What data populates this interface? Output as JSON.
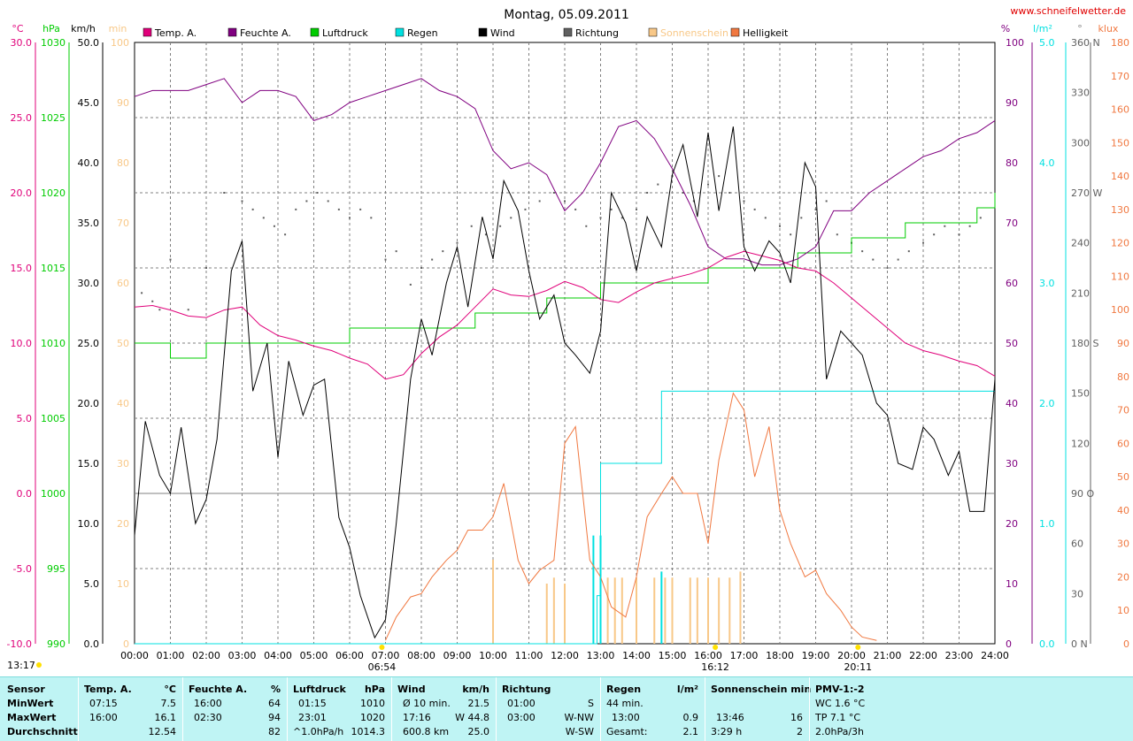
{
  "title": "Montag, 05.09.2011",
  "website": "www.schneifelwetter.de",
  "colors": {
    "temp": "#e0007a",
    "humidity": "#800080",
    "pressure": "#00cc00",
    "rain": "#00e0e0",
    "wind": "#000000",
    "direction": "#606060",
    "sunshine": "#f8c888",
    "brightness": "#f07840"
  },
  "legend": [
    {
      "label": "Temp. A.",
      "color": "#e0007a"
    },
    {
      "label": "Feuchte A.",
      "color": "#800080"
    },
    {
      "label": "Luftdruck",
      "color": "#00cc00"
    },
    {
      "label": "Regen",
      "color": "#00e0e0"
    },
    {
      "label": "Wind",
      "color": "#000000"
    },
    {
      "label": "Richtung",
      "color": "#606060"
    },
    {
      "label": "Sonnenschein",
      "color": "#f8c888"
    },
    {
      "label": "Helligkeit",
      "color": "#f07840"
    }
  ],
  "axes": {
    "left_units": [
      "°C",
      "hPa",
      "km/h",
      "min"
    ],
    "right_units": [
      "%",
      "l/m²",
      "°",
      "klux"
    ],
    "temp_ticks": [
      "30.0",
      "25.0",
      "20.0",
      "15.0",
      "10.0",
      "5.0",
      "0.0",
      "-5.0",
      "-10.0"
    ],
    "pressure_ticks": [
      "1030",
      "1025",
      "1020",
      "1015",
      "1010",
      "1005",
      "1000",
      "995",
      "990"
    ],
    "wind_ticks": [
      "50.0",
      "45.0",
      "40.0",
      "35.0",
      "30.0",
      "25.0",
      "20.0",
      "15.0",
      "10.0",
      "5.0",
      "0.0"
    ],
    "min_ticks": [
      "100",
      "90",
      "80",
      "70",
      "60",
      "50",
      "40",
      "30",
      "20",
      "10",
      "0"
    ],
    "humidity_ticks": [
      "100",
      "90",
      "80",
      "70",
      "60",
      "50",
      "40",
      "30",
      "20",
      "10",
      "0"
    ],
    "rain_ticks": [
      "5.0",
      "4.0",
      "3.0",
      "2.0",
      "1.0",
      "0.0"
    ],
    "dir_ticks": [
      "360 N",
      "330",
      "300",
      "270 W",
      "240",
      "210",
      "180 S",
      "150",
      "120",
      "90 O",
      "60",
      "30",
      "0 N"
    ],
    "klux_ticks": [
      "180",
      "170",
      "160",
      "150",
      "140",
      "130",
      "120",
      "110",
      "100",
      "90",
      "80",
      "70",
      "60",
      "50",
      "40",
      "30",
      "20",
      "10",
      "0"
    ],
    "x_ticks": [
      "00:00",
      "01:00",
      "02:00",
      "03:00",
      "04:00",
      "05:00",
      "06:00",
      "07:00",
      "08:00",
      "09:00",
      "10:00",
      "11:00",
      "12:00",
      "13:00",
      "14:00",
      "15:00",
      "16:00",
      "17:00",
      "18:00",
      "19:00",
      "20:00",
      "21:00",
      "22:00",
      "23:00",
      "24:00"
    ],
    "sun_markers": [
      {
        "label": "13:17"
      },
      {
        "label": "06:54"
      },
      {
        "label": "16:12"
      },
      {
        "label": "20:11"
      }
    ]
  },
  "chart_data": {
    "type": "line",
    "x_unit": "hour",
    "series": [
      {
        "name": "Temp. A.",
        "unit": "°C",
        "x": [
          0,
          0.5,
          1,
          1.5,
          2,
          2.5,
          3,
          3.5,
          4,
          4.5,
          5,
          5.5,
          6,
          6.5,
          7,
          7.5,
          8,
          8.5,
          9,
          9.5,
          10,
          10.5,
          11,
          11.5,
          12,
          12.5,
          13,
          13.5,
          14,
          14.5,
          15,
          15.5,
          16,
          16.5,
          17,
          17.5,
          18,
          18.5,
          19,
          19.5,
          20,
          20.5,
          21,
          21.5,
          22,
          22.5,
          23,
          23.5,
          24
        ],
        "y": [
          12.4,
          12.5,
          12.2,
          11.8,
          11.7,
          12.2,
          12.4,
          11.2,
          10.5,
          10.2,
          9.8,
          9.5,
          9.0,
          8.6,
          7.6,
          7.9,
          9.3,
          10.4,
          11.2,
          12.4,
          13.6,
          13.2,
          13.1,
          13.5,
          14.1,
          13.7,
          12.9,
          12.7,
          13.4,
          14.0,
          14.3,
          14.6,
          15.0,
          15.7,
          16.1,
          15.8,
          15.5,
          15.0,
          14.8,
          14.0,
          13.0,
          12.0,
          11.0,
          10.0,
          9.5,
          9.2,
          8.8,
          8.5,
          7.8
        ]
      },
      {
        "name": "Feuchte A.",
        "unit": "%",
        "x": [
          0,
          0.5,
          1,
          1.5,
          2,
          2.5,
          3,
          3.5,
          4,
          4.5,
          5,
          5.5,
          6,
          6.5,
          7,
          7.5,
          8,
          8.5,
          9,
          9.5,
          10,
          10.5,
          11,
          11.5,
          12,
          12.5,
          13,
          13.5,
          14,
          14.5,
          15,
          15.5,
          16,
          16.5,
          17,
          17.5,
          18,
          18.5,
          19,
          19.5,
          20,
          20.5,
          21,
          21.5,
          22,
          22.5,
          23,
          23.5,
          24
        ],
        "y": [
          91,
          92,
          92,
          92,
          93,
          94,
          90,
          92,
          92,
          91,
          87,
          88,
          90,
          91,
          92,
          93,
          94,
          92,
          91,
          89,
          82,
          79,
          80,
          78,
          72,
          75,
          80,
          86,
          87,
          84,
          79,
          73,
          66,
          64,
          64,
          63,
          63,
          64,
          66,
          72,
          72,
          75,
          77,
          79,
          81,
          82,
          84,
          85,
          87
        ]
      },
      {
        "name": "Luftdruck",
        "unit": "hPa",
        "x": [
          0,
          0.5,
          1,
          1.5,
          2,
          2.5,
          3,
          3.5,
          4,
          4.5,
          5,
          5.5,
          6,
          6.5,
          7,
          7.5,
          8,
          8.5,
          9,
          9.5,
          10,
          10.5,
          11,
          11.5,
          12,
          12.5,
          13,
          13.5,
          14,
          14.5,
          15,
          15.5,
          16,
          16.5,
          17,
          17.5,
          18,
          18.5,
          19,
          19.5,
          20,
          20.5,
          21,
          21.5,
          22,
          22.5,
          23,
          23.5,
          24
        ],
        "y": [
          1010,
          1010,
          1009,
          1009,
          1010,
          1010,
          1010,
          1010,
          1010,
          1010,
          1010,
          1010,
          1011,
          1011,
          1011,
          1011,
          1011,
          1011,
          1011,
          1012,
          1012,
          1012,
          1012,
          1013,
          1013,
          1013,
          1014,
          1014,
          1014,
          1014,
          1014,
          1014,
          1015,
          1015,
          1015,
          1015,
          1015,
          1016,
          1016,
          1016,
          1017,
          1017,
          1017,
          1018,
          1018,
          1018,
          1018,
          1019,
          1020
        ]
      },
      {
        "name": "Wind",
        "unit": "km/h",
        "x": [
          0,
          0.3,
          0.7,
          1,
          1.3,
          1.7,
          2,
          2.3,
          2.7,
          3,
          3.3,
          3.7,
          4,
          4.3,
          4.7,
          5,
          5.3,
          5.7,
          6,
          6.3,
          6.7,
          7,
          7.3,
          7.7,
          8,
          8.3,
          8.7,
          9,
          9.3,
          9.7,
          10,
          10.3,
          10.7,
          11,
          11.3,
          11.7,
          12,
          12.3,
          12.7,
          13,
          13.3,
          13.7,
          14,
          14.3,
          14.7,
          15,
          15.3,
          15.7,
          16,
          16.3,
          16.7,
          17,
          17.3,
          17.7,
          18,
          18.3,
          18.7,
          19,
          19.3,
          19.7,
          20,
          20.3,
          20.7,
          21,
          21.3,
          21.7,
          22,
          22.3,
          22.7,
          23,
          23.3,
          23.7,
          24
        ],
        "y": [
          9,
          18.5,
          14,
          12.5,
          18,
          10,
          12,
          17,
          31,
          33.5,
          21,
          25,
          15.5,
          23.5,
          19,
          21.5,
          22,
          10.5,
          8,
          4,
          0.5,
          2,
          10,
          22,
          27,
          24,
          30,
          33,
          28,
          35.5,
          32,
          38.5,
          36,
          31,
          27,
          29,
          25,
          24,
          22.5,
          26,
          37.5,
          35,
          31,
          35.5,
          33,
          39,
          41.5,
          35.5,
          42.5,
          36,
          43,
          33,
          31,
          33.5,
          32.5,
          30,
          40,
          38,
          22,
          26,
          25,
          24,
          20,
          19,
          15,
          14.5,
          18,
          17,
          14,
          16,
          11,
          11,
          22
        ]
      },
      {
        "name": "Regen",
        "unit": "l/m²",
        "x": [
          0,
          12.5,
          12.9,
          13.0,
          13.5,
          14.0,
          14.5,
          14.7,
          15.0,
          16,
          17,
          18,
          19,
          20,
          21,
          22,
          23,
          24
        ],
        "y": [
          0,
          0,
          0.4,
          1.5,
          1.5,
          1.5,
          1.5,
          2.1,
          2.1,
          2.1,
          2.1,
          2.1,
          2.1,
          2.1,
          2.1,
          2.1,
          2.1,
          2.1
        ]
      },
      {
        "name": "Helligkeit",
        "unit": "klux",
        "x": [
          7,
          7.3,
          7.7,
          8,
          8.3,
          8.7,
          9,
          9.3,
          9.7,
          10,
          10.3,
          10.7,
          11,
          11.3,
          11.7,
          12,
          12.3,
          12.7,
          13,
          13.3,
          13.7,
          14,
          14.3,
          14.7,
          15,
          15.3,
          15.7,
          16,
          16.3,
          16.7,
          17,
          17.3,
          17.7,
          18,
          18.3,
          18.7,
          19,
          19.3,
          19.7,
          20,
          20.3,
          20.7
        ],
        "y": [
          1,
          8,
          14,
          15,
          20,
          25,
          28,
          34,
          34,
          38,
          48,
          25,
          18,
          22,
          25,
          60,
          65,
          25,
          20,
          11,
          8,
          20,
          38,
          45,
          50,
          45,
          45,
          30,
          55,
          75,
          70,
          50,
          65,
          40,
          30,
          20,
          22,
          15,
          10,
          5,
          2,
          1
        ]
      },
      {
        "name": "Sonnenschein",
        "unit": "min",
        "x": [
          10,
          11.5,
          11.7,
          12,
          13,
          13.2,
          13.4,
          13.6,
          14,
          14.5,
          14.8,
          15,
          15.5,
          15.7,
          16,
          16.3,
          16.6,
          16.9
        ],
        "y": [
          14,
          10,
          11,
          10,
          11,
          11,
          11,
          11,
          11,
          11,
          11,
          11,
          11,
          11,
          11,
          11,
          11,
          12
        ]
      },
      {
        "name": "Richtung",
        "unit": "°",
        "x": [
          0.2,
          0.5,
          0.7,
          1,
          1.5,
          2,
          2.5,
          3,
          3.3,
          3.6,
          3.9,
          4.2,
          4.5,
          4.8,
          5.1,
          5.4,
          5.7,
          6,
          6.3,
          6.6,
          7,
          7.3,
          7.7,
          8,
          8.3,
          8.6,
          9,
          9.4,
          9.8,
          10.2,
          10.5,
          10.9,
          11.3,
          11.7,
          12,
          12.3,
          12.6,
          13,
          13.3,
          13.6,
          14,
          14.3,
          14.6,
          15,
          15.3,
          15.6,
          16,
          16.3,
          16.6,
          17,
          17.3,
          17.6,
          18,
          18.3,
          18.6,
          19,
          19.3,
          19.6,
          20,
          20.3,
          20.6,
          21,
          21.3,
          21.6,
          22,
          22.3,
          22.6,
          23,
          23.3,
          23.6
        ],
        "y": [
          210,
          205,
          200,
          230,
          200,
          225,
          270,
          265,
          260,
          255,
          250,
          245,
          260,
          265,
          270,
          265,
          260,
          255,
          260,
          255,
          230,
          235,
          215,
          225,
          230,
          235,
          240,
          250,
          245,
          250,
          255,
          260,
          265,
          270,
          265,
          260,
          250,
          255,
          260,
          255,
          260,
          270,
          275,
          280,
          270,
          265,
          275,
          280,
          270,
          265,
          260,
          255,
          250,
          245,
          255,
          260,
          265,
          245,
          240,
          235,
          230,
          225,
          230,
          235,
          240,
          245,
          250,
          245,
          250,
          255
        ]
      }
    ],
    "y_ranges": {
      "temp": [
        -10,
        30
      ],
      "pressure": [
        990,
        1030
      ],
      "wind": [
        0,
        50
      ],
      "humidity": [
        0,
        100
      ],
      "rain": [
        0,
        5
      ],
      "direction": [
        0,
        360
      ],
      "klux": [
        0,
        180
      ]
    },
    "x_range": [
      0,
      24
    ],
    "grid": true
  },
  "stats": {
    "sensor": {
      "header": "Sensor",
      "rows": [
        "MinWert",
        "MaxWert",
        "Durchschnitt"
      ]
    },
    "temp": {
      "header": "Temp. A.",
      "unit": "°C",
      "rows": [
        [
          "07:15",
          "7.5"
        ],
        [
          "16:00",
          "16.1"
        ],
        [
          "",
          "12.54"
        ]
      ]
    },
    "humidity": {
      "header": "Feuchte A.",
      "unit": "%",
      "rows": [
        [
          "16:00",
          "64"
        ],
        [
          "02:30",
          "94"
        ],
        [
          "",
          "82"
        ]
      ]
    },
    "pressure": {
      "header": "Luftdruck",
      "unit": "hPa",
      "rows": [
        [
          "01:15",
          "1010"
        ],
        [
          "23:01",
          "1020"
        ],
        [
          "^1.0hPa/h",
          "1014.3"
        ]
      ]
    },
    "wind": {
      "header": "Wind",
      "unit": "km/h",
      "rows": [
        [
          "Ø 10 min.",
          "21.5"
        ],
        [
          "17:16",
          "W 44.8"
        ],
        [
          "600.8 km",
          "25.0"
        ]
      ]
    },
    "direction": {
      "header": "Richtung",
      "rows": [
        [
          "01:00",
          "S"
        ],
        [
          "03:00",
          "W-NW"
        ],
        [
          "",
          "W-SW"
        ]
      ]
    },
    "rain": {
      "header": "Regen",
      "unit": "l/m²",
      "rows": [
        [
          "44 min.",
          ""
        ],
        [
          "13:00",
          "0.9"
        ],
        [
          "Gesamt:",
          "2.1"
        ]
      ]
    },
    "sunshine": {
      "header": "Sonnenschein min",
      "rows": [
        [
          "",
          ""
        ],
        [
          "13:46",
          "16"
        ],
        [
          "3:29 h",
          "2"
        ]
      ]
    },
    "pmv": {
      "header": "PMV-1:-2",
      "rows": [
        "WC 1.6 °C",
        "TP 7.1 °C",
        "2.0hPa/3h"
      ]
    }
  }
}
